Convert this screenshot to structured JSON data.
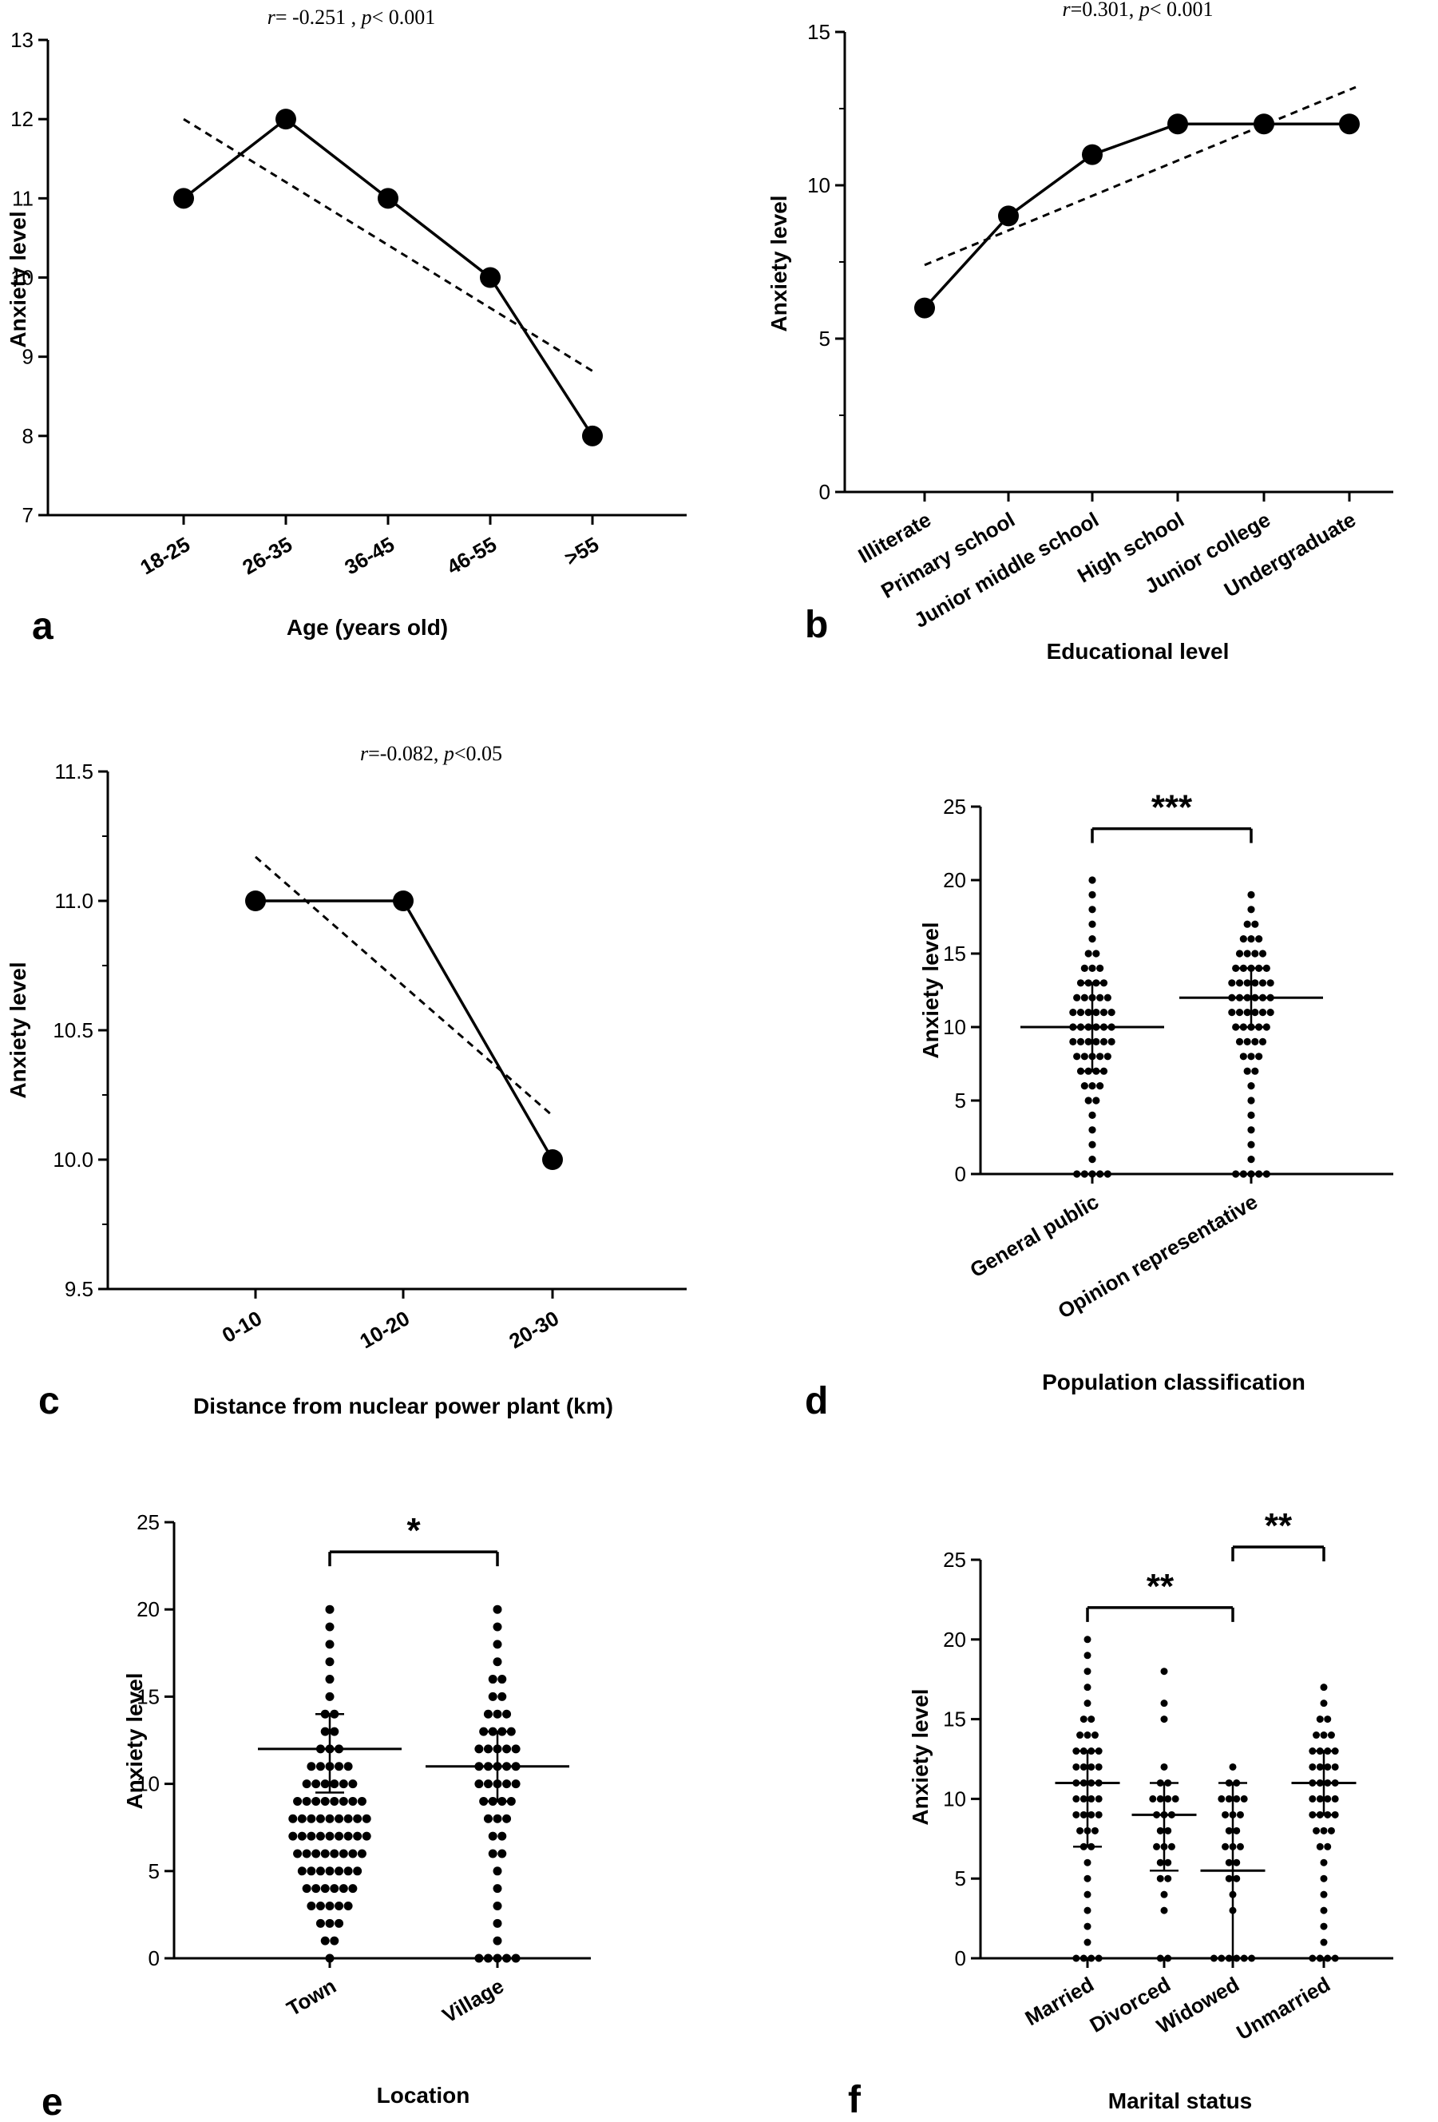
{
  "figure": {
    "description_free": true
  },
  "chart_data": [
    {
      "id": "a",
      "type": "line",
      "panel_label": "a",
      "stat_r": "r",
      "stat_text": "= -0.251 , ",
      "stat_p": "p",
      "stat_text2": "< 0.001",
      "xlabel": "Age (years old)",
      "ylabel": "Anxiety level",
      "categories": [
        "18-25",
        "26-35",
        "36-45",
        "46-55",
        ">55"
      ],
      "values": [
        11,
        12,
        11,
        10,
        8
      ],
      "trend": [
        12.0,
        8.82
      ],
      "ylim": [
        7,
        13
      ],
      "yticks": [
        "7",
        "8",
        "9",
        "10",
        "11",
        "12",
        "13"
      ]
    },
    {
      "id": "b",
      "type": "line",
      "panel_label": "b",
      "stat_r": "r",
      "stat_text": "=0.301, ",
      "stat_p": "p",
      "stat_text2": "< 0.001",
      "xlabel": "Educational level",
      "ylabel": "Anxiety level",
      "categories": [
        "Illiterate",
        "Primary school",
        "Junior middle school",
        "High school",
        "Junior college",
        "Undergraduate"
      ],
      "values": [
        6,
        9,
        11,
        12,
        12,
        12
      ],
      "trend": [
        7.4,
        13.2
      ],
      "ylim": [
        0,
        15
      ],
      "yticks": [
        "0",
        "5",
        "10",
        "15"
      ]
    },
    {
      "id": "c",
      "type": "line",
      "panel_label": "c",
      "stat_r": "r",
      "stat_text": "=-0.082, ",
      "stat_p": "p",
      "stat_text2": "<0.05",
      "xlabel": "Distance from nuclear power plant (km)",
      "ylabel": "Anxiety level",
      "categories": [
        "0-10",
        "10-20",
        "20-30"
      ],
      "values": [
        11.0,
        11.0,
        10.0
      ],
      "trend": [
        11.17,
        10.17
      ],
      "ylim": [
        9.5,
        11.5
      ],
      "yticks": [
        "9.5",
        "10.0",
        "10.5",
        "11.0",
        "11.5"
      ]
    },
    {
      "id": "d",
      "type": "scatter",
      "panel_label": "d",
      "xlabel": "Population classification",
      "ylabel": "Anxiety level",
      "categories": [
        "General public",
        "Opinion representative"
      ],
      "means": [
        10,
        12
      ],
      "sd_lower": [
        7,
        10
      ],
      "sd_upper": [
        13,
        14
      ],
      "ranges": [
        [
          0,
          20
        ],
        [
          0,
          19
        ]
      ],
      "significance": [
        {
          "from": 0,
          "to": 1,
          "label": "***"
        }
      ],
      "ylim": [
        0,
        25
      ],
      "yticks": [
        "0",
        "5",
        "10",
        "15",
        "20",
        "25"
      ]
    },
    {
      "id": "e",
      "type": "scatter",
      "panel_label": "e",
      "xlabel": "Location",
      "ylabel": "Anxiety level",
      "categories": [
        "Town",
        "Village"
      ],
      "means": [
        12,
        11
      ],
      "sd_lower": [
        9.5,
        9
      ],
      "sd_upper": [
        14,
        13
      ],
      "ranges": [
        [
          0,
          20
        ],
        [
          0,
          20
        ]
      ],
      "significance": [
        {
          "from": 0,
          "to": 1,
          "label": "*"
        }
      ],
      "ylim": [
        0,
        25
      ],
      "yticks": [
        "0",
        "5",
        "10",
        "15",
        "20",
        "25"
      ]
    },
    {
      "id": "f",
      "type": "scatter",
      "panel_label": "f",
      "xlabel": "Marital status",
      "ylabel": "Anxiety level",
      "categories": [
        "Married",
        "Divorced",
        "Widowed",
        "Unmarried"
      ],
      "means": [
        11,
        9,
        5.5,
        11
      ],
      "sd_lower": [
        7,
        5.5,
        0,
        9
      ],
      "sd_upper": [
        13,
        11,
        11,
        13
      ],
      "ranges": [
        [
          0,
          20
        ],
        [
          0,
          18
        ],
        [
          0,
          12
        ],
        [
          0,
          17
        ]
      ],
      "significance": [
        {
          "from": 0,
          "to": 2,
          "label": "**"
        },
        {
          "from": 2,
          "to": 3,
          "label": "**"
        }
      ],
      "ylim": [
        0,
        25
      ],
      "yticks": [
        "0",
        "5",
        "10",
        "15",
        "20",
        "25"
      ]
    }
  ]
}
